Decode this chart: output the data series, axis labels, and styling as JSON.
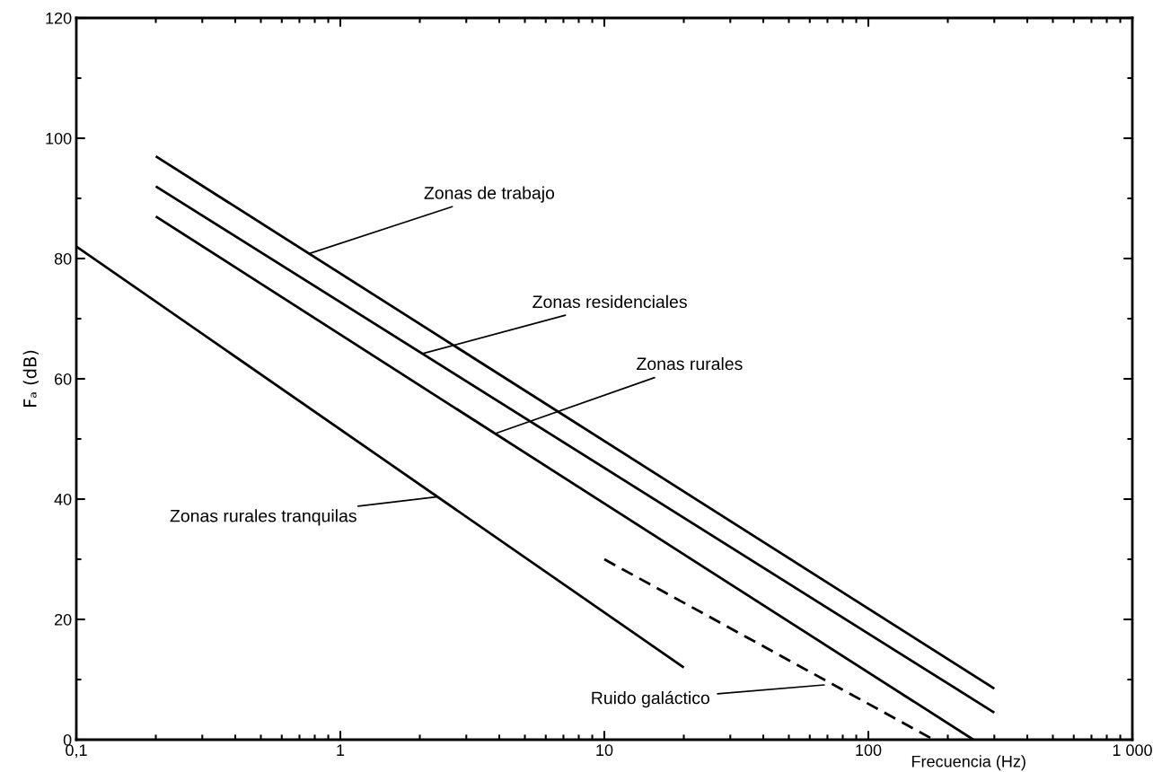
{
  "chart_data": {
    "type": "line",
    "xlabel": "Frecuencia (Hz)",
    "ylabel": "Fₐ (dB)",
    "log": "x",
    "xlim": [
      0.1,
      1000
    ],
    "ylim": [
      0,
      120
    ],
    "xticks": [
      {
        "value": 0.1,
        "label": "0,1"
      },
      1,
      10,
      100,
      {
        "value": 1000,
        "label": "1 000"
      }
    ],
    "yticks": [
      0,
      20,
      40,
      60,
      80,
      100,
      120
    ],
    "grid": false,
    "legend": false,
    "marker": "none",
    "series": [
      {
        "color": "#000000",
        "x": [
          0.2,
          300
        ],
        "values": [
          97,
          8.5
        ],
        "line_style": "solid"
      },
      {
        "color": "#000000",
        "x": [
          0.2,
          300
        ],
        "values": [
          92,
          4.5
        ],
        "line_style": "solid"
      },
      {
        "color": "#000000",
        "x": [
          0.2,
          250
        ],
        "values": [
          87,
          0
        ],
        "line_style": "solid"
      },
      {
        "color": "#000000",
        "x": [
          0.1,
          20
        ],
        "values": [
          82,
          12
        ],
        "line_style": "solid"
      },
      {
        "color": "#000000",
        "x": [
          10,
          177
        ],
        "values": [
          30,
          0
        ],
        "line_style": "dashed"
      }
    ],
    "annotations": [
      {
        "text": "Zonas de trabajo",
        "x": 0.76,
        "y": 80.8
      },
      {
        "text": "Zonas residenciales",
        "x": 2.05,
        "y": 64.2
      },
      {
        "text": "Zonas rurales",
        "x": 3.86,
        "y": 50.9
      },
      {
        "text": "Zonas rurales tranquilas",
        "x": 2.34,
        "y": 40.4
      },
      {
        "text": "Ruido galáctico",
        "x": 68,
        "y": 9.1
      }
    ]
  }
}
